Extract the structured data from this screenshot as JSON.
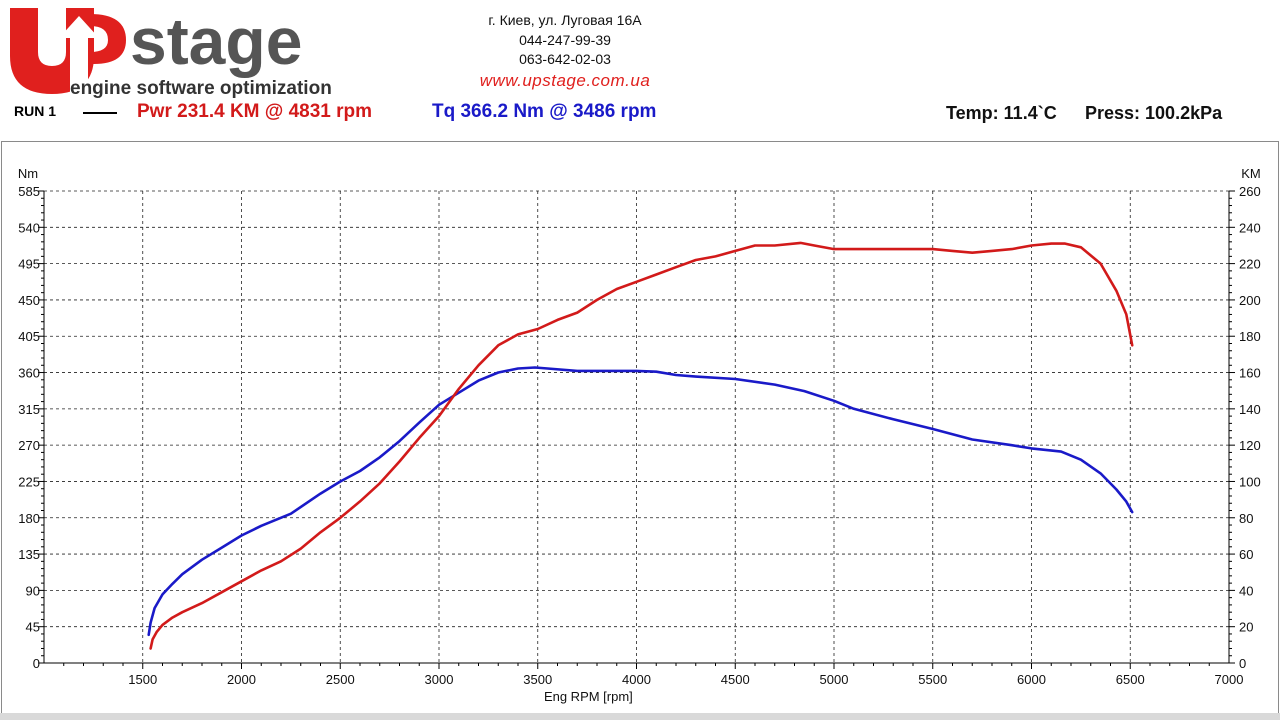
{
  "header": {
    "logo_text": "Upstage",
    "logo_tagline": "engine software optimization",
    "address": "г. Киев, ул. Луговая 16А",
    "phone1": "044-247-99-39",
    "phone2": "063-642-02-03",
    "website": "www.upstage.com.ua",
    "run_label": "RUN 1",
    "power_summary": "Pwr  231.4 KM @ 4831 rpm",
    "torque_summary": "Tq 366.2 Nm @ 3486 rpm",
    "temperature": "Temp: 11.4`C",
    "pressure": "Press: 100.2kPa"
  },
  "colors": {
    "power": "#d21a1a",
    "torque": "#1a1ac8",
    "logo_red": "#e0201e",
    "logo_gray": "#555555"
  },
  "chart_data": {
    "type": "line",
    "xlabel": "Eng RPM [rpm]",
    "ylabel_left": "Nm",
    "ylabel_right": "KM",
    "xlim": [
      1000,
      7000
    ],
    "ylim_left": [
      0,
      585
    ],
    "ylim_right": [
      0,
      260
    ],
    "x_ticks": [
      1500,
      2000,
      2500,
      3000,
      3500,
      4000,
      4500,
      5000,
      5500,
      6000,
      6500,
      7000
    ],
    "y_ticks_left": [
      0,
      45,
      90,
      135,
      180,
      225,
      270,
      315,
      360,
      405,
      450,
      495,
      540,
      585
    ],
    "y_ticks_right": [
      0,
      20,
      40,
      60,
      80,
      100,
      120,
      140,
      160,
      180,
      200,
      220,
      240,
      260
    ],
    "grid": true,
    "series": [
      {
        "name": "Tq",
        "axis": "left",
        "color": "#1a1ac8",
        "x": [
          1530,
          1540,
          1560,
          1600,
          1650,
          1700,
          1800,
          1900,
          2000,
          2100,
          2250,
          2400,
          2500,
          2600,
          2700,
          2800,
          2900,
          3000,
          3100,
          3200,
          3300,
          3400,
          3486,
          3550,
          3700,
          3850,
          4000,
          4100,
          4200,
          4300,
          4500,
          4700,
          4850,
          5000,
          5100,
          5300,
          5500,
          5700,
          5900,
          6000,
          6150,
          6250,
          6350,
          6430,
          6480,
          6510
        ],
        "values": [
          35,
          50,
          68,
          85,
          98,
          110,
          128,
          143,
          158,
          170,
          185,
          210,
          225,
          238,
          255,
          275,
          298,
          320,
          335,
          350,
          360,
          365,
          366.2,
          365,
          362,
          362,
          362,
          361,
          357,
          355,
          352,
          345,
          337,
          325,
          315,
          302,
          290,
          277,
          270,
          266,
          262,
          252,
          235,
          215,
          200,
          187
        ]
      },
      {
        "name": "Pwr",
        "axis": "right",
        "color": "#d21a1a",
        "x": [
          1540,
          1550,
          1570,
          1600,
          1650,
          1700,
          1800,
          1900,
          2000,
          2100,
          2200,
          2300,
          2400,
          2500,
          2600,
          2700,
          2800,
          2900,
          3000,
          3100,
          3200,
          3300,
          3400,
          3500,
          3600,
          3700,
          3800,
          3900,
          4000,
          4100,
          4200,
          4300,
          4400,
          4500,
          4600,
          4700,
          4831,
          4900,
          5000,
          5100,
          5300,
          5500,
          5600,
          5700,
          5800,
          5900,
          6000,
          6100,
          6170,
          6250,
          6350,
          6430,
          6480,
          6510
        ],
        "values": [
          8,
          13,
          17,
          21,
          25,
          28,
          33,
          39,
          45,
          51,
          56,
          63,
          72,
          80,
          89,
          99,
          111,
          124,
          136,
          151,
          164,
          175,
          181,
          184,
          189,
          193,
          200,
          206,
          210,
          214,
          218,
          222,
          224,
          227,
          230,
          230,
          231.4,
          230,
          228,
          228,
          228,
          228,
          227,
          226,
          227,
          228,
          230,
          231,
          231,
          229,
          220,
          205,
          192,
          175
        ]
      }
    ]
  }
}
